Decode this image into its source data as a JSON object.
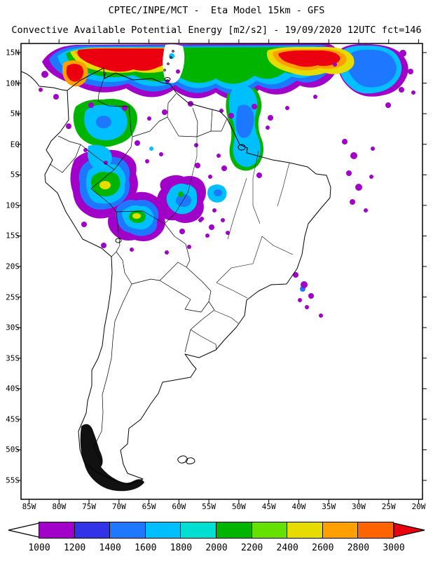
{
  "header": {
    "title_line1": "CPTEC/INPE/MCT -  Eta Model 15km - GFS",
    "title_line2": "Convective Available Potential Energy [m2/s2] - 19/09/2020 12UTC fct=146"
  },
  "map": {
    "lat_labels": [
      "15N",
      "10N",
      "5N",
      "EQ",
      "5S",
      "10S",
      "15S",
      "20S",
      "25S",
      "30S",
      "35S",
      "40S",
      "45S",
      "50S",
      "55S"
    ],
    "lon_labels": [
      "85W",
      "80W",
      "75W",
      "70W",
      "65W",
      "60W",
      "55W",
      "50W",
      "45W",
      "40W",
      "35W",
      "30W",
      "25W",
      "20W"
    ]
  },
  "colorbar": {
    "boundary_labels": [
      "1000",
      "1200",
      "1400",
      "1600",
      "1800",
      "2000",
      "2200",
      "2400",
      "2600",
      "2800",
      "3000"
    ],
    "segment_colors": [
      "#a000c8",
      "#3232e6",
      "#1e78ff",
      "#00bfff",
      "#00e0d2",
      "#00b400",
      "#64e100",
      "#e6dc00",
      "#ffa000",
      "#ff6400"
    ],
    "below_min_color": "#ffffff",
    "above_max_color": "#eb0010"
  },
  "chart_data": {
    "type": "heatmap",
    "title": "Convective Available Potential Energy [m2/s2]",
    "source": "CPTEC/INPE/MCT",
    "model": "Eta Model 15km - GFS",
    "valid": "19/09/2020 12UTC fct=146",
    "units": "m2/s2",
    "region": {
      "lon_range": [
        "85W",
        "20W"
      ],
      "lat_range": [
        "55S",
        "15N"
      ]
    },
    "scale_levels": [
      1000,
      1200,
      1400,
      1600,
      1800,
      2000,
      2200,
      2400,
      2600,
      2800,
      3000
    ],
    "scale_colors": [
      "#a000c8",
      "#3232e6",
      "#1e78ff",
      "#00bfff",
      "#00e0d2",
      "#00b400",
      "#64e100",
      "#e6dc00",
      "#ffa000",
      "#ff6400"
    ],
    "legend_position": "bottom",
    "notes": "High CAPE band along ITCZ near 10N-15N with red cores >3000; scattered purple-to-yellow cells over western Amazon, Colombia/Venezuela and coastal Guianas; isolated purple cells offshore NE and SE Brazil."
  }
}
